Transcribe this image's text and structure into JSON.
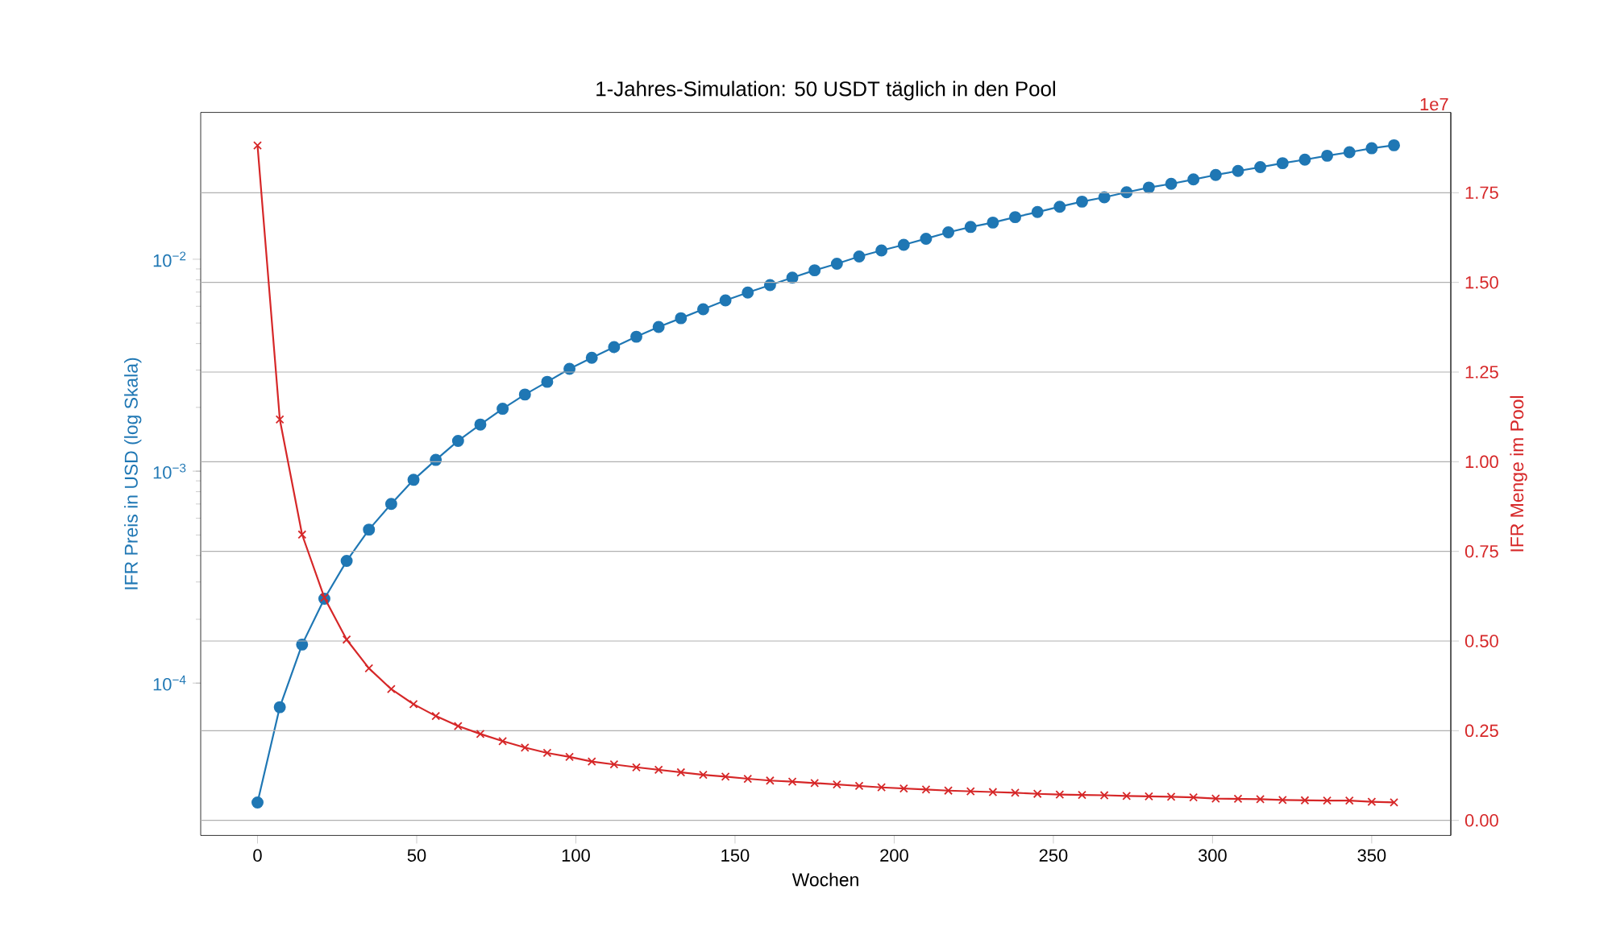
{
  "chart_data": {
    "type": "line",
    "title": "1-Jahres-Simulation: 50 USDT täglich in den Pool",
    "xlabel": "Wochen",
    "ylabel": "IFR Preis in USD (log Skala)",
    "y2label": "IFR Menge im Pool",
    "x": [
      0,
      7,
      14,
      21,
      28,
      35,
      42,
      49,
      56,
      63,
      70,
      77,
      84,
      91,
      98,
      105,
      112,
      119,
      126,
      133,
      140,
      147,
      154,
      161,
      168,
      175,
      182,
      189,
      196,
      203,
      210,
      217,
      224,
      231,
      238,
      245,
      252,
      259,
      266,
      273,
      280,
      287,
      294,
      301,
      308,
      315,
      322,
      329,
      336,
      343,
      350,
      357
    ],
    "series": [
      {
        "color": "#1f77b4",
        "marker": "circle",
        "values": [
          2.73e-05,
          7.7e-05,
          0.000152,
          0.00025,
          0.000377,
          0.00053,
          0.0007,
          0.00091,
          0.00113,
          0.00139,
          0.00166,
          0.00197,
          0.0023,
          0.00264,
          0.00304,
          0.00343,
          0.00385,
          0.00431,
          0.00479,
          0.00527,
          0.00581,
          0.0064,
          0.00697,
          0.00755,
          0.00819,
          0.00887,
          0.00952,
          0.0103,
          0.011,
          0.0117,
          0.0125,
          0.0134,
          0.0142,
          0.0149,
          0.0158,
          0.0167,
          0.0177,
          0.0187,
          0.0196,
          0.0207,
          0.0218,
          0.0227,
          0.0238,
          0.025,
          0.0261,
          0.0272,
          0.0284,
          0.0295,
          0.0308,
          0.032,
          0.0334,
          0.0345
        ]
      },
      {
        "color": "#d62728",
        "marker": "cross",
        "axis": "y2",
        "values": [
          1.882,
          1.118,
          0.797,
          0.621,
          0.504,
          0.424,
          0.366,
          0.324,
          0.291,
          0.263,
          0.241,
          0.221,
          0.203,
          0.188,
          0.177,
          0.164,
          0.156,
          0.148,
          0.141,
          0.134,
          0.127,
          0.122,
          0.116,
          0.111,
          0.108,
          0.104,
          0.1,
          0.096,
          0.092,
          0.089,
          0.086,
          0.083,
          0.081,
          0.079,
          0.077,
          0.074,
          0.072,
          0.071,
          0.07,
          0.068,
          0.067,
          0.066,
          0.064,
          0.061,
          0.06,
          0.059,
          0.057,
          0.056,
          0.055,
          0.055,
          0.052,
          0.05
        ]
      }
    ],
    "log": "y",
    "grid": "y2",
    "line_style": "solid",
    "xlim": [
      -17.85,
      374.85
    ],
    "xticks": [
      0,
      50,
      100,
      150,
      200,
      250,
      300,
      350
    ],
    "ylim": [
      1.91e-05,
      0.0493
    ],
    "yticks": [
      {
        "value": 0.0001,
        "label": "10$^{−4}$"
      },
      {
        "value": 0.001,
        "label": "10$^{−3}$"
      },
      {
        "value": 0.01,
        "label": "10$^{−2}$"
      }
    ],
    "y2lim": [
      -0.042,
      1.974
    ],
    "y2ticks": [
      {
        "value": 0,
        "label": "0.00"
      },
      {
        "value": 0.25,
        "label": "0.25"
      },
      {
        "value": 0.5,
        "label": "0.50"
      },
      {
        "value": 0.75,
        "label": "0.75"
      },
      {
        "value": 1.0,
        "label": "1.00"
      },
      {
        "value": 1.25,
        "label": "1.25"
      },
      {
        "value": 1.5,
        "label": "1.50"
      },
      {
        "value": 1.75,
        "label": "1.75"
      }
    ],
    "annotations": [
      "1e7"
    ]
  }
}
